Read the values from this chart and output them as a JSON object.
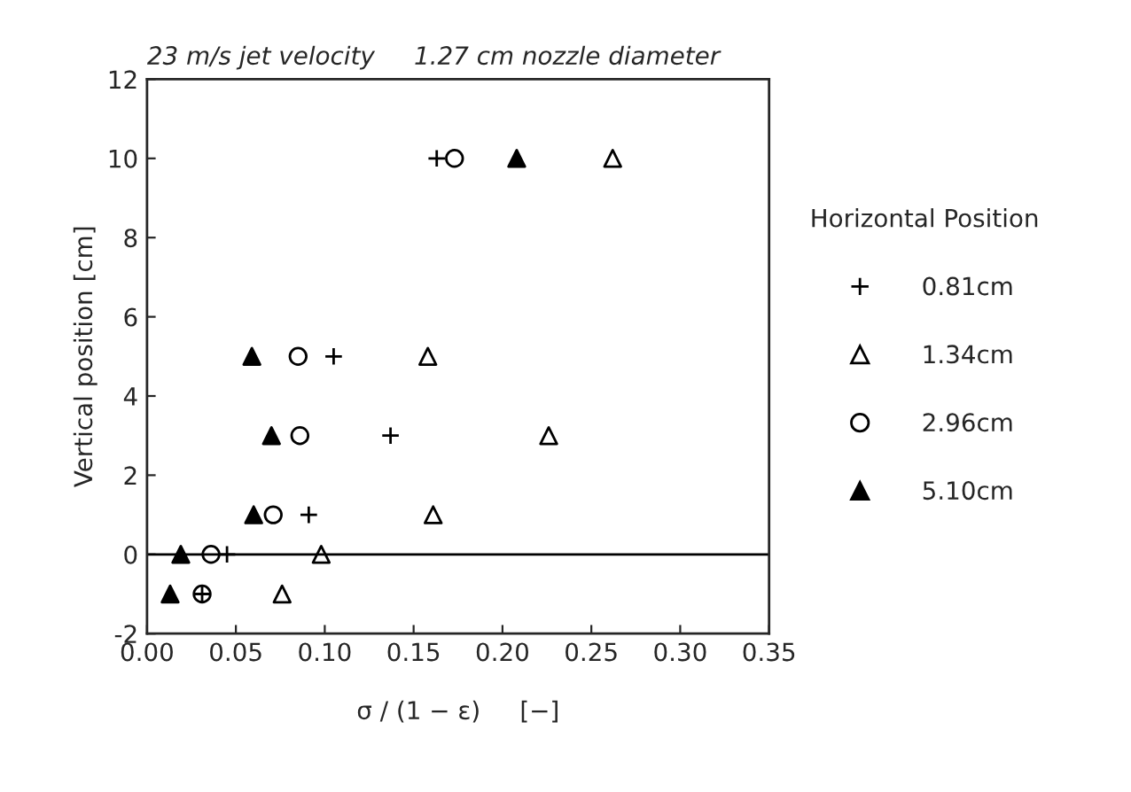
{
  "chart_data": {
    "type": "scatter",
    "title": "23 m/s jet velocity     1.27 cm nozzle diameter",
    "xlabel": "σ / (1 − ε)     [−]",
    "ylabel": "Vertical position [cm]",
    "legend_title": "Horizontal Position",
    "xlim": [
      0,
      0.35
    ],
    "xticks": [
      {
        "value": 0,
        "label": "0.00"
      },
      {
        "value": 0.05,
        "label": "0.05"
      },
      {
        "value": 0.1,
        "label": "0.10"
      },
      {
        "value": 0.15,
        "label": "0.15"
      },
      {
        "value": 0.2,
        "label": "0.20"
      },
      {
        "value": 0.25,
        "label": "0.25"
      },
      {
        "value": 0.3,
        "label": "0.30"
      },
      {
        "value": 0.35,
        "label": "0.35"
      }
    ],
    "ylim": [
      -2,
      12
    ],
    "yticks": [
      -2,
      0,
      2,
      4,
      6,
      8,
      10,
      12
    ],
    "grid": false,
    "legend": "right",
    "ref_lines": [
      {
        "axis": "y",
        "value": 0,
        "color": "#000000"
      }
    ],
    "series": [
      {
        "name": "0.81cm",
        "color": "#000000",
        "marker": "cross",
        "x": [
          0.163,
          0.105,
          0.137,
          0.091,
          0.045,
          0.031
        ],
        "values": [
          10,
          5,
          3,
          1,
          0,
          -1
        ]
      },
      {
        "name": "1.34cm",
        "color": "#000000",
        "marker": "triangle",
        "x": [
          0.262,
          0.158,
          0.226,
          0.161,
          0.098,
          0.076
        ],
        "values": [
          10,
          5,
          3,
          1,
          0,
          -1
        ]
      },
      {
        "name": "2.96cm",
        "color": "#000000",
        "marker": "circle",
        "x": [
          0.173,
          0.085,
          0.086,
          0.071,
          0.036,
          0.031
        ],
        "values": [
          10,
          5,
          3,
          1,
          0,
          -1
        ]
      },
      {
        "name": "5.10cm",
        "color": "#000000",
        "marker": "triangle",
        "x": [
          0.208,
          0.059,
          0.07,
          0.06,
          0.019,
          0.013
        ],
        "values": [
          10,
          5,
          3,
          1,
          0,
          -1
        ]
      }
    ]
  }
}
